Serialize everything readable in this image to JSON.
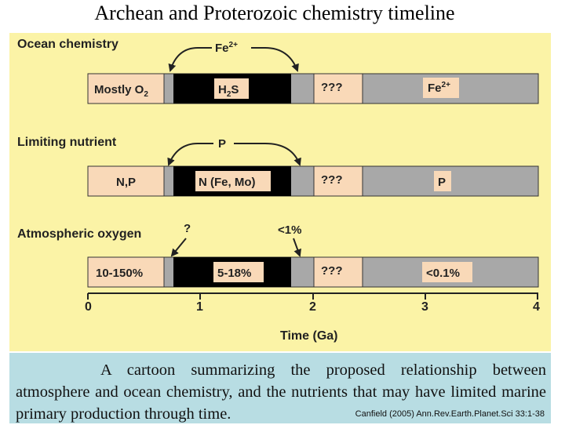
{
  "title": "Archean and Proterozoic chemistry timeline",
  "sections": [
    {
      "label": "Ocean chemistry",
      "arrow_label": "Fe2+",
      "cells": {
        "early": "Mostly O2",
        "black": "H2S",
        "gap": "???",
        "late": "Fe2+"
      }
    },
    {
      "label": "Limiting nutrient",
      "arrow_label": "P",
      "cells": {
        "early": "N,P",
        "black": "N (Fe, Mo)",
        "gap": "???",
        "late": "P"
      }
    },
    {
      "label": "Atmospheric oxygen",
      "arrow_label_left": "?",
      "arrow_label_right": "<1%",
      "cells": {
        "early": "10-150%",
        "black": "5-18%",
        "gap": "???",
        "late": "<0.1%"
      }
    }
  ],
  "axis": {
    "ticks": [
      "0",
      "1",
      "2",
      "3",
      "4"
    ],
    "label": "Time (Ga)"
  },
  "caption": "A cartoon summarizing the proposed relationship between atmosphere and ocean chemistry, and the nutrients that may have limited marine primary production through time.",
  "citation": "Canfield (2005) Ann.Rev.Earth.Planet.Sci 33:1-38",
  "colors": {
    "panel_bg": "#fbf3a6",
    "early_cell": "#f9d9b8",
    "gray_cell": "#a8a8a8",
    "black_cell": "#000000",
    "caption_bg": "#b8dde3"
  }
}
